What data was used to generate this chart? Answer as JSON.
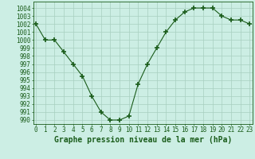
{
  "x": [
    0,
    1,
    2,
    3,
    4,
    5,
    6,
    7,
    8,
    9,
    10,
    11,
    12,
    13,
    14,
    15,
    16,
    17,
    18,
    19,
    20,
    21,
    22,
    23
  ],
  "y": [
    1002,
    1000,
    1000,
    998.5,
    997,
    995.5,
    993,
    991,
    990,
    990,
    990.5,
    994.5,
    997,
    999,
    1001,
    1002.5,
    1003.5,
    1004,
    1004,
    1004,
    1003,
    1002.5,
    1002.5,
    1002
  ],
  "line_color": "#1a5c1a",
  "marker": "+",
  "marker_size": 4,
  "marker_color": "#1a5c1a",
  "background_color": "#cceee4",
  "grid_color": "#a8cfc0",
  "xlabel": "Graphe pression niveau de la mer (hPa)",
  "ylim": [
    989.5,
    1004.8
  ],
  "xlim": [
    -0.3,
    23.3
  ],
  "yticks": [
    990,
    991,
    992,
    993,
    994,
    995,
    996,
    997,
    998,
    999,
    1000,
    1001,
    1002,
    1003,
    1004
  ],
  "xticks": [
    0,
    1,
    2,
    3,
    4,
    5,
    6,
    7,
    8,
    9,
    10,
    11,
    12,
    13,
    14,
    15,
    16,
    17,
    18,
    19,
    20,
    21,
    22,
    23
  ],
  "tick_label_fontsize": 5.5,
  "xlabel_fontsize": 7,
  "tick_color": "#1a5c1a",
  "axis_color": "#1a5c1a"
}
